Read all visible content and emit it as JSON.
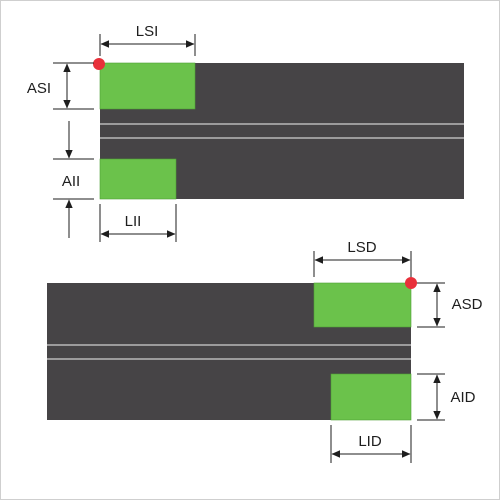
{
  "colors": {
    "plate": "#464446",
    "slot_line": "#cfcfcf",
    "pad": "#6bc24b",
    "pad_edge": "#4d9e34",
    "marker": "#e8303a",
    "dimension": "#1e1e1e",
    "frame": "#cfcfcf"
  },
  "labels": {
    "top_width": "LSI",
    "top_height": "ASI",
    "bottom_height": "AII",
    "bottom_width": "LII",
    "right_top_width": "LSD",
    "right_top_height": "ASD",
    "right_bottom_height": "AID",
    "right_bottom_width": "LID"
  }
}
